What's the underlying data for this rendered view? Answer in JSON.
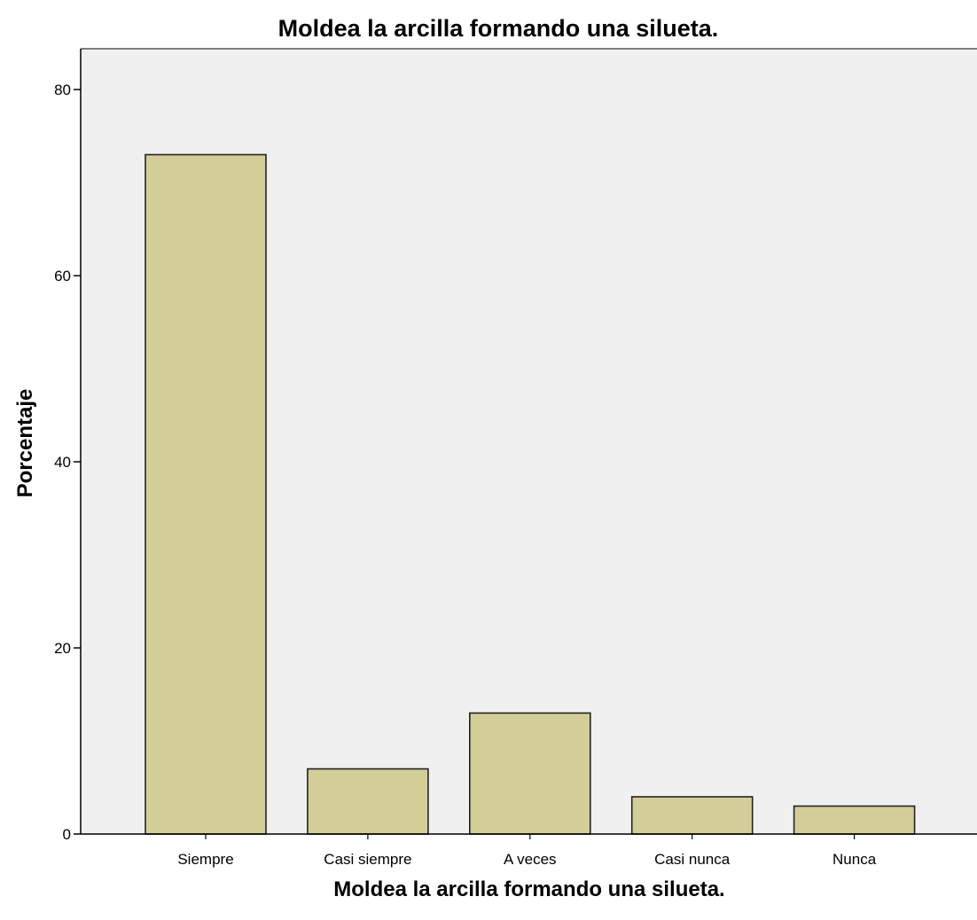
{
  "chart_data": {
    "type": "bar",
    "title": "Moldea la arcilla formando una silueta.",
    "xlabel": "Moldea la arcilla formando una silueta.",
    "ylabel": "Porcentaje",
    "categories": [
      "Siempre",
      "Casi siempre",
      "A veces",
      "Casi nunca",
      "Nunca"
    ],
    "values": [
      73,
      7,
      13,
      4,
      3
    ],
    "ylim": [
      0,
      84
    ],
    "yticks": [
      0,
      20,
      40,
      60,
      80
    ],
    "grid": false,
    "legend": "none"
  },
  "colors": {
    "plot_background": "#f0f0f0",
    "bar_fill": "#d3ce97",
    "bar_stroke": "#222222",
    "axis": "#000000"
  }
}
